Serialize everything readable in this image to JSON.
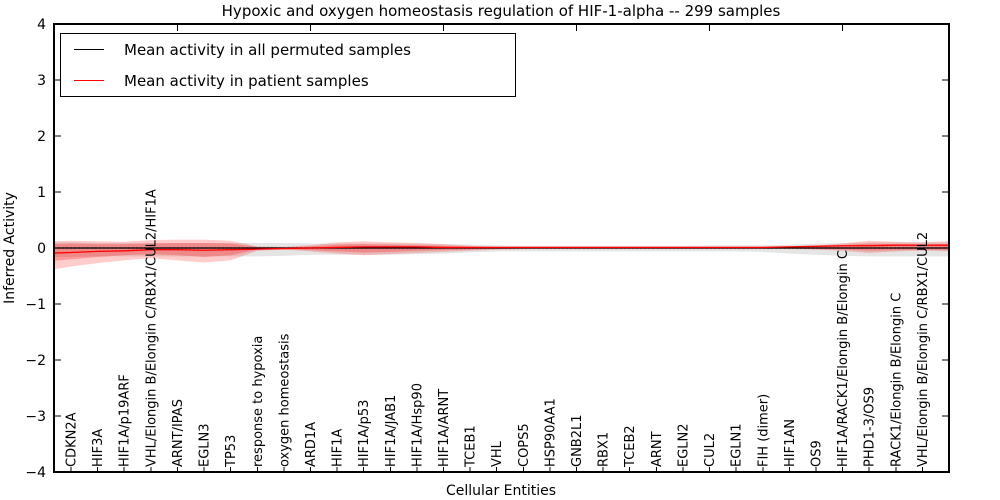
{
  "chart_data": {
    "type": "line",
    "title": "Hypoxic and oxygen homeostasis regulation of HIF-1-alpha -- 299 samples",
    "xlabel": "Cellular Entities",
    "ylabel": "Inferred Activity",
    "ylim": [
      -4,
      4
    ],
    "xlim": [
      -0.64,
      33.0
    ],
    "grid": false,
    "legend_position": "upper left",
    "yticks": [
      4,
      3,
      2,
      1,
      0,
      -1,
      -2,
      -3,
      -4
    ],
    "ytick_labels": [
      "4",
      "3",
      "2",
      "1",
      "0",
      "−1",
      "−2",
      "−3",
      "−4"
    ],
    "top_xticks": [
      4,
      9,
      14,
      19,
      24,
      29
    ],
    "zero_line": {
      "value": 0,
      "style": "dotted",
      "color": "#000000"
    },
    "categories": [
      "CDKN2A",
      "HIF3A",
      "HIF1A/p19ARF",
      "VHL/Elongin B/Elongin C/RBX1/CUL2/HIF1A",
      "ARNT/IPAS",
      "EGLN3",
      "TP53",
      "response to hypoxia",
      "oxygen homeostasis",
      "ARD1A",
      "HIF1A",
      "HIF1A/p53",
      "HIF1A/JAB1",
      "HIF1A/Hsp90",
      "HIF1A/ARNT",
      "TCEB1",
      "VHL",
      "COPS5",
      "HSP90AA1",
      "GNB2L1",
      "RBX1",
      "TCEB2",
      "ARNT",
      "EGLN2",
      "CUL2",
      "EGLN1",
      "FIH (dimer)",
      "HIF1AN",
      "OS9",
      "HIF1A/RACK1/Elongin B/Elongin C",
      "PHD1-3/OS9",
      "RACK1/Elongin B/Elongin C",
      "VHL/Elongin B/Elongin C/RBX1/CUL2"
    ],
    "x_edge": [
      -0.64,
      0,
      1,
      2,
      3,
      4,
      5,
      6,
      7,
      8,
      9,
      10,
      11,
      12,
      13,
      14,
      15,
      16,
      17,
      18,
      19,
      20,
      21,
      22,
      23,
      24,
      25,
      26,
      27,
      28,
      29,
      30,
      31,
      32,
      33
    ],
    "series": [
      {
        "name": "Mean activity in all permuted samples",
        "color": "#000000",
        "values": [
          0,
          0,
          0,
          0,
          0,
          0,
          0,
          0,
          0,
          0,
          0,
          0,
          0,
          0,
          0,
          0,
          0,
          0,
          0,
          0,
          0,
          0,
          0,
          0,
          0,
          0,
          0,
          0,
          0,
          0,
          0,
          0,
          0,
          0,
          0
        ]
      },
      {
        "name": "Mean activity in patient samples",
        "color": "#ff0000",
        "values": [
          -0.09,
          -0.08,
          -0.06,
          -0.05,
          -0.03,
          -0.03,
          -0.04,
          -0.03,
          -0.02,
          -0.01,
          0,
          0.01,
          0.02,
          0.02,
          0.02,
          0.01,
          0.01,
          0.01,
          0.01,
          0.01,
          0.01,
          0.01,
          0.01,
          0.01,
          0.01,
          0.01,
          0.01,
          0.01,
          0.02,
          0.03,
          0.04,
          0.04,
          0.05,
          0.05,
          0.05
        ]
      }
    ],
    "bands": [
      {
        "name": "permuted-samples-envelope",
        "color": "rgba(0,0,0,0.10)",
        "upper": [
          0.1,
          0.1,
          0.09,
          0.09,
          0.09,
          0.09,
          0.09,
          0.09,
          0.09,
          0.09,
          0.08,
          0.08,
          0.08,
          0.08,
          0.08,
          0.07,
          0.06,
          0.05,
          0.04,
          0.04,
          0.04,
          0.04,
          0.04,
          0.04,
          0.04,
          0.05,
          0.05,
          0.05,
          0.06,
          0.08,
          0.09,
          0.1,
          0.1,
          0.1,
          0.1
        ],
        "lower": [
          -0.16,
          -0.16,
          -0.15,
          -0.15,
          -0.15,
          -0.15,
          -0.15,
          -0.15,
          -0.15,
          -0.14,
          -0.12,
          -0.12,
          -0.12,
          -0.12,
          -0.11,
          -0.1,
          -0.08,
          -0.06,
          -0.06,
          -0.06,
          -0.06,
          -0.06,
          -0.06,
          -0.06,
          -0.06,
          -0.06,
          -0.06,
          -0.07,
          -0.1,
          -0.12,
          -0.14,
          -0.15,
          -0.15,
          -0.15,
          -0.15
        ]
      },
      {
        "name": "patient-samples-envelope-outer",
        "color": "rgba(255,0,0,0.20)",
        "upper": [
          0.12,
          0.13,
          0.12,
          0.11,
          0.14,
          0.15,
          0.15,
          0.13,
          0.03,
          0.02,
          0.05,
          0.1,
          0.12,
          0.1,
          0.09,
          0.07,
          0.04,
          0.02,
          0.02,
          0.02,
          0.02,
          0.02,
          0.02,
          0.02,
          0.02,
          0.02,
          0.02,
          0.02,
          0.03,
          0.04,
          0.08,
          0.13,
          0.11,
          0.1,
          0.12
        ],
        "lower": [
          -0.38,
          -0.33,
          -0.27,
          -0.22,
          -0.18,
          -0.22,
          -0.26,
          -0.22,
          -0.05,
          -0.03,
          -0.06,
          -0.1,
          -0.13,
          -0.11,
          -0.09,
          -0.07,
          -0.05,
          -0.03,
          -0.02,
          -0.02,
          -0.02,
          -0.02,
          -0.02,
          -0.02,
          -0.02,
          -0.02,
          -0.02,
          -0.02,
          -0.02,
          -0.03,
          -0.05,
          -0.09,
          -0.06,
          -0.05,
          -0.06
        ]
      },
      {
        "name": "patient-samples-envelope-inner",
        "color": "rgba(255,0,0,0.25)",
        "upper": [
          0.07,
          0.08,
          0.07,
          0.07,
          0.08,
          0.09,
          0.09,
          0.08,
          0.02,
          0.01,
          0.03,
          0.06,
          0.07,
          0.06,
          0.05,
          0.04,
          0.02,
          0.01,
          0.01,
          0.01,
          0.01,
          0.01,
          0.01,
          0.01,
          0.01,
          0.01,
          0.01,
          0.01,
          0.02,
          0.02,
          0.05,
          0.08,
          0.07,
          0.06,
          0.07
        ],
        "lower": [
          -0.23,
          -0.2,
          -0.16,
          -0.13,
          -0.11,
          -0.13,
          -0.16,
          -0.13,
          -0.03,
          -0.02,
          -0.04,
          -0.06,
          -0.08,
          -0.07,
          -0.05,
          -0.04,
          -0.03,
          -0.02,
          -0.01,
          -0.01,
          -0.01,
          -0.01,
          -0.01,
          -0.01,
          -0.01,
          -0.01,
          -0.01,
          -0.01,
          -0.01,
          -0.02,
          -0.03,
          -0.05,
          -0.04,
          -0.03,
          -0.04
        ]
      }
    ]
  }
}
